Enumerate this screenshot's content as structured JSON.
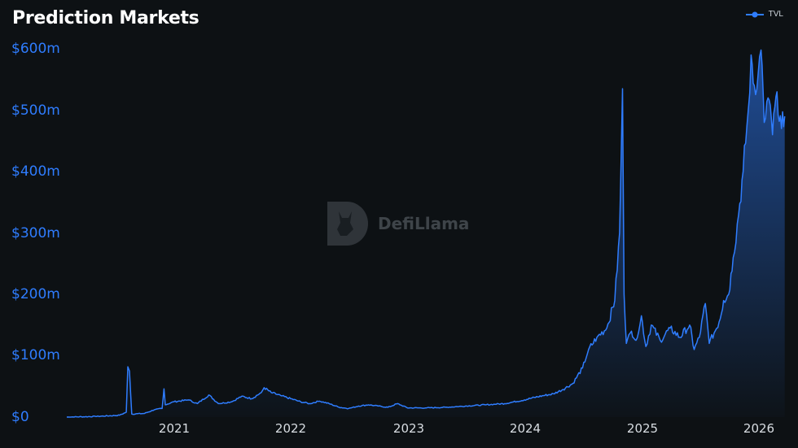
{
  "title": "Prediction Markets",
  "legend": {
    "label": "TVL",
    "color": "#2f7dff"
  },
  "watermark": {
    "text": "DefiLlama",
    "logo": "llama-logo-icon"
  },
  "colors": {
    "background": "#0d1114",
    "line": "#2f7dff",
    "axis_text_y": "#2f7dff",
    "axis_text_x": "#d8dde2"
  },
  "chart_data": {
    "type": "area",
    "title": "Prediction Markets",
    "series": [
      {
        "name": "TVL"
      }
    ],
    "y_unit": "USD millions",
    "ylim": [
      0,
      600
    ],
    "yticks": [
      0,
      100,
      200,
      300,
      400,
      500,
      600
    ],
    "ytick_labels": [
      "$0",
      "$100m",
      "$200m",
      "$300m",
      "$400m",
      "$500m",
      "$600m"
    ],
    "xticks": [
      "2021",
      "2022",
      "2023",
      "2024",
      "2025",
      "2026"
    ],
    "xlim": [
      "2020-02-01",
      "2026-04-05"
    ],
    "grid": false,
    "legend_position": "top-right",
    "points": [
      [
        "2020-02-01",
        0
      ],
      [
        "2020-05-01",
        1
      ],
      [
        "2020-07-15",
        3
      ],
      [
        "2020-08-05",
        8
      ],
      [
        "2020-08-10",
        82
      ],
      [
        "2020-08-15",
        75
      ],
      [
        "2020-08-22",
        5
      ],
      [
        "2020-10-01",
        6
      ],
      [
        "2020-11-01",
        12
      ],
      [
        "2020-11-25",
        14
      ],
      [
        "2020-12-01",
        46
      ],
      [
        "2020-12-05",
        20
      ],
      [
        "2021-01-01",
        25
      ],
      [
        "2021-02-15",
        28
      ],
      [
        "2021-03-15",
        22
      ],
      [
        "2021-04-20",
        36
      ],
      [
        "2021-05-20",
        22
      ],
      [
        "2021-07-01",
        25
      ],
      [
        "2021-08-01",
        34
      ],
      [
        "2021-09-01",
        30
      ],
      [
        "2021-10-01",
        40
      ],
      [
        "2021-10-10",
        48
      ],
      [
        "2021-11-01",
        40
      ],
      [
        "2021-12-01",
        35
      ],
      [
        "2022-01-01",
        30
      ],
      [
        "2022-02-01",
        25
      ],
      [
        "2022-03-01",
        22
      ],
      [
        "2022-04-01",
        26
      ],
      [
        "2022-05-01",
        22
      ],
      [
        "2022-06-01",
        16
      ],
      [
        "2022-07-01",
        14
      ],
      [
        "2022-08-01",
        18
      ],
      [
        "2022-09-01",
        20
      ],
      [
        "2022-10-01",
        18
      ],
      [
        "2022-11-01",
        16
      ],
      [
        "2022-12-01",
        22
      ],
      [
        "2023-01-01",
        15
      ],
      [
        "2023-03-01",
        15
      ],
      [
        "2023-05-01",
        16
      ],
      [
        "2023-07-01",
        18
      ],
      [
        "2023-09-01",
        20
      ],
      [
        "2023-11-01",
        22
      ],
      [
        "2024-01-01",
        28
      ],
      [
        "2024-02-01",
        32
      ],
      [
        "2024-03-01",
        35
      ],
      [
        "2024-04-01",
        38
      ],
      [
        "2024-05-01",
        45
      ],
      [
        "2024-06-01",
        55
      ],
      [
        "2024-07-01",
        80
      ],
      [
        "2024-07-20",
        110
      ],
      [
        "2024-08-15",
        130
      ],
      [
        "2024-09-15",
        145
      ],
      [
        "2024-10-10",
        190
      ],
      [
        "2024-10-25",
        300
      ],
      [
        "2024-11-03",
        535
      ],
      [
        "2024-11-08",
        200
      ],
      [
        "2024-11-15",
        120
      ],
      [
        "2024-12-01",
        140
      ],
      [
        "2024-12-15",
        125
      ],
      [
        "2025-01-01",
        165
      ],
      [
        "2025-01-15",
        115
      ],
      [
        "2025-02-01",
        150
      ],
      [
        "2025-03-01",
        125
      ],
      [
        "2025-04-01",
        145
      ],
      [
        "2025-05-01",
        130
      ],
      [
        "2025-06-01",
        150
      ],
      [
        "2025-06-15",
        110
      ],
      [
        "2025-07-01",
        130
      ],
      [
        "2025-07-20",
        185
      ],
      [
        "2025-08-01",
        120
      ],
      [
        "2025-09-01",
        155
      ],
      [
        "2025-09-15",
        190
      ],
      [
        "2025-10-01",
        200
      ],
      [
        "2025-10-15",
        260
      ],
      [
        "2025-11-01",
        330
      ],
      [
        "2025-11-15",
        400
      ],
      [
        "2025-12-01",
        500
      ],
      [
        "2025-12-10",
        590
      ],
      [
        "2025-12-20",
        540
      ],
      [
        "2026-01-01",
        560
      ],
      [
        "2026-01-10",
        598
      ],
      [
        "2026-01-20",
        480
      ],
      [
        "2026-02-01",
        520
      ],
      [
        "2026-02-15",
        460
      ],
      [
        "2026-03-01",
        530
      ],
      [
        "2026-03-15",
        470
      ],
      [
        "2026-03-25",
        490
      ]
    ]
  }
}
